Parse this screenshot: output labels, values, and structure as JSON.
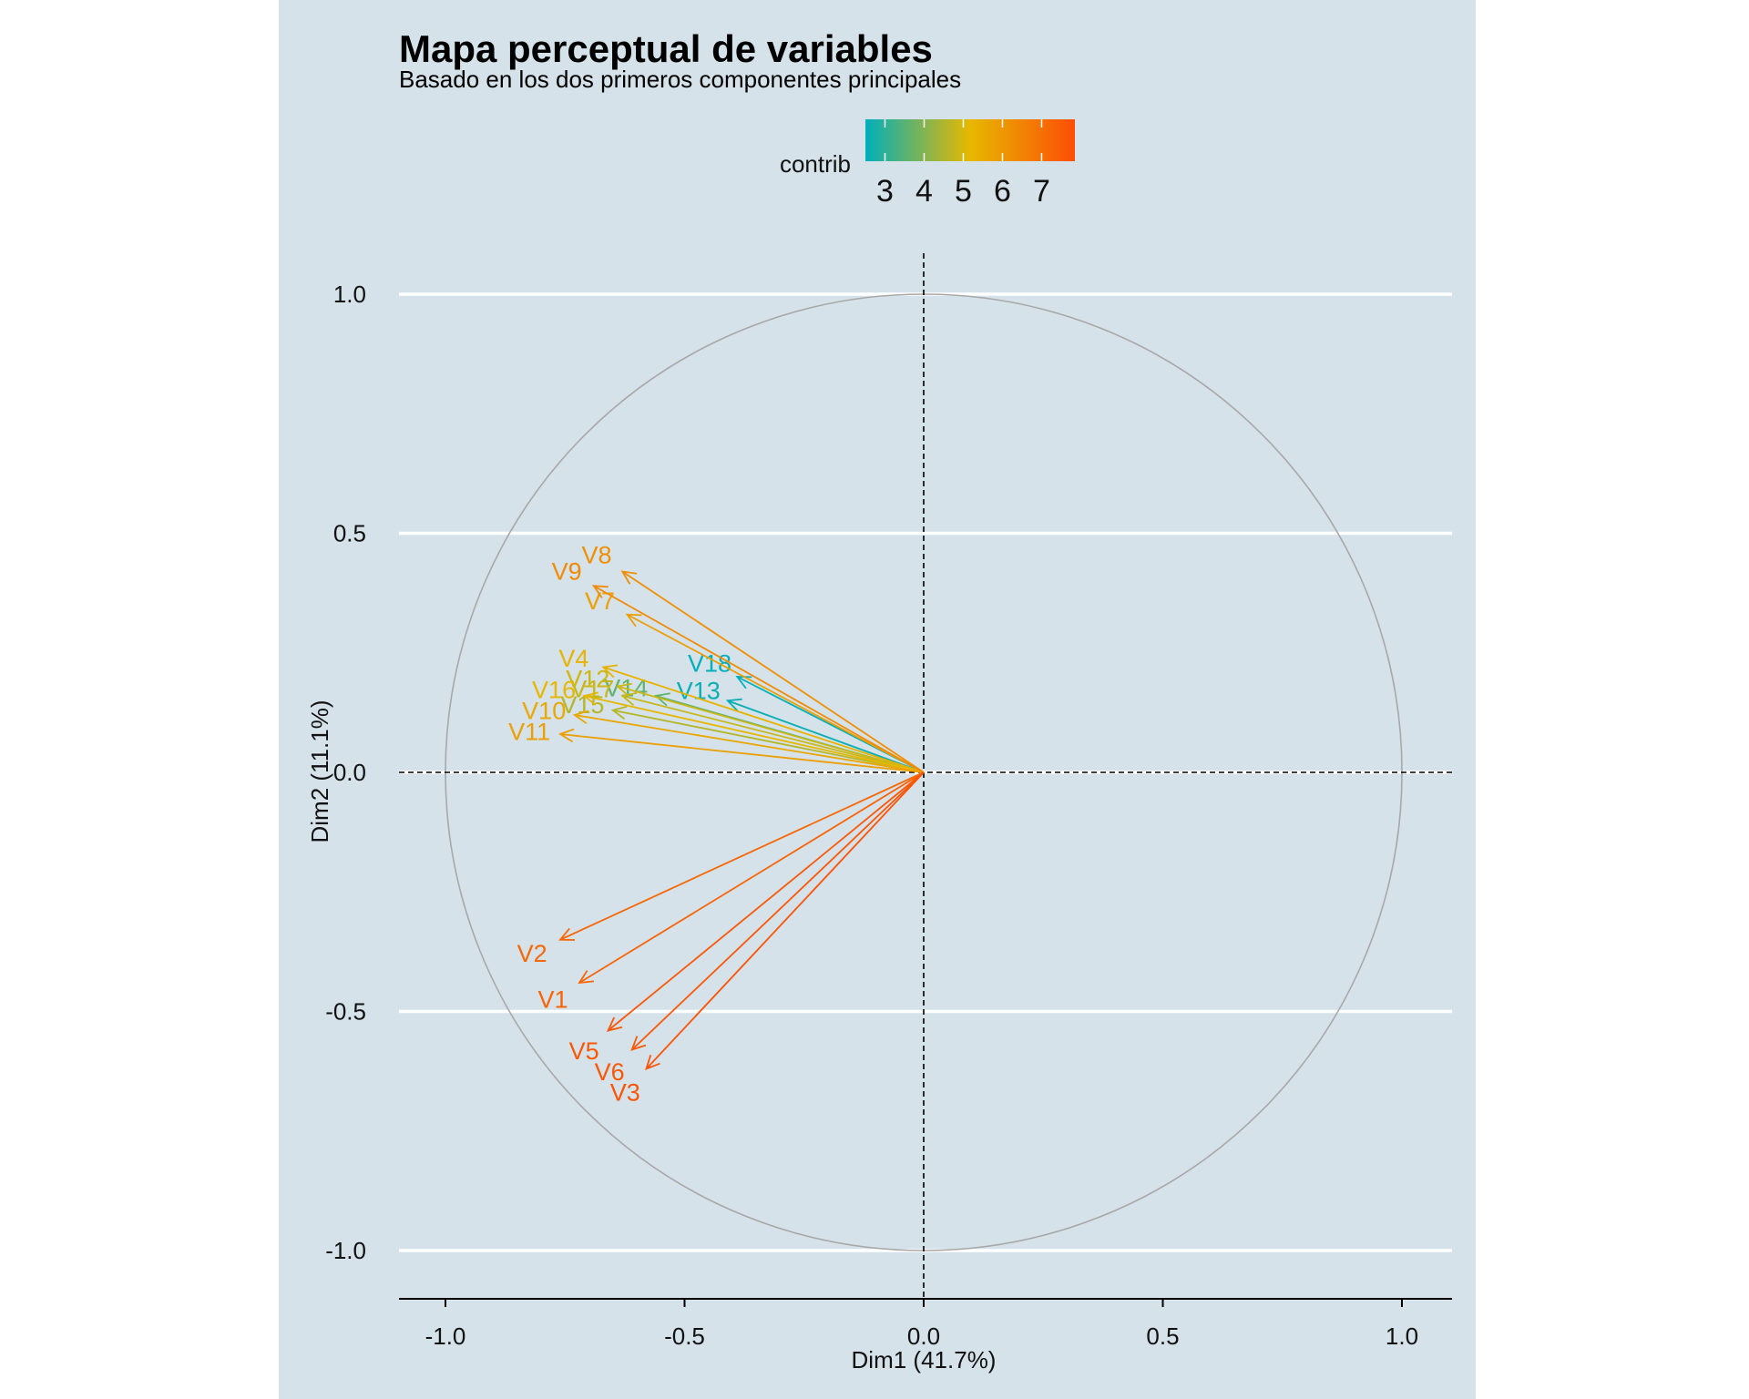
{
  "chart_data": {
    "type": "scatter",
    "subtype": "pca-variable-correlation-circle",
    "title": "Mapa perceptual de variables",
    "subtitle": "Basado en los dos primeros componentes principales",
    "xlabel": "Dim1 (41.7%)",
    "ylabel": "Dim2 (11.1%)",
    "xlim": [
      -1.1,
      1.1
    ],
    "ylim": [
      -1.1,
      1.1
    ],
    "x_ticks": [
      -1.0,
      -0.5,
      0.0,
      0.5,
      1.0
    ],
    "x_tick_labels": [
      "-1.0",
      "-0.5",
      "0.0",
      "0.5",
      "1.0"
    ],
    "y_ticks": [
      1.0,
      0.5,
      0.0,
      -0.5,
      -1.0
    ],
    "y_tick_labels": [
      "1.0",
      "0.5",
      "0.0",
      "-0.5",
      "-1.0"
    ],
    "legend": {
      "title": "contrib",
      "position": "top",
      "range": [
        2.5,
        7.85
      ],
      "ticks": [
        3,
        4,
        5,
        6,
        7
      ],
      "tick_labels": [
        "3",
        "4",
        "5",
        "6",
        "7"
      ],
      "gradient_colors": [
        "#00AFBB",
        "#E7B800",
        "#FC4E07"
      ]
    },
    "colors": {
      "background": "#d5e2e9",
      "grid": "#ffffff",
      "circle": "#a8a8a8",
      "reference_lines": "#000000"
    },
    "variables": [
      {
        "name": "V1",
        "x": -0.72,
        "y": -0.44,
        "contrib": 7.3
      },
      {
        "name": "V2",
        "x": -0.76,
        "y": -0.35,
        "contrib": 7.2
      },
      {
        "name": "V3",
        "x": -0.58,
        "y": -0.62,
        "contrib": 7.7
      },
      {
        "name": "V4",
        "x": -0.67,
        "y": 0.22,
        "contrib": 5.3
      },
      {
        "name": "V5",
        "x": -0.66,
        "y": -0.54,
        "contrib": 7.6
      },
      {
        "name": "V6",
        "x": -0.61,
        "y": -0.58,
        "contrib": 7.6
      },
      {
        "name": "V7",
        "x": -0.62,
        "y": 0.33,
        "contrib": 5.8
      },
      {
        "name": "V8",
        "x": -0.63,
        "y": 0.42,
        "contrib": 6.2
      },
      {
        "name": "V9",
        "x": -0.69,
        "y": 0.39,
        "contrib": 6.3
      },
      {
        "name": "V10",
        "x": -0.73,
        "y": 0.12,
        "contrib": 5.6
      },
      {
        "name": "V11",
        "x": -0.76,
        "y": 0.08,
        "contrib": 5.8
      },
      {
        "name": "V12",
        "x": -0.64,
        "y": 0.18,
        "contrib": 4.9
      },
      {
        "name": "V13",
        "x": -0.41,
        "y": 0.15,
        "contrib": 2.6
      },
      {
        "name": "V14",
        "x": -0.56,
        "y": 0.16,
        "contrib": 3.6
      },
      {
        "name": "V15",
        "x": -0.65,
        "y": 0.13,
        "contrib": 4.6
      },
      {
        "name": "V16",
        "x": -0.71,
        "y": 0.16,
        "contrib": 5.2
      },
      {
        "name": "V17",
        "x": -0.63,
        "y": 0.16,
        "contrib": 4.8
      },
      {
        "name": "V18",
        "x": -0.39,
        "y": 0.2,
        "contrib": 2.5
      }
    ]
  }
}
